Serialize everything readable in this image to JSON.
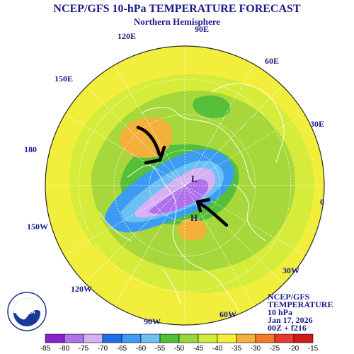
{
  "header": {
    "title": "NCEP/GFS 10-hPa TEMPERATURE FORECAST",
    "subtitle": "Northern Hemisphere"
  },
  "longitude_labels": {
    "lon_90e": "90E",
    "lon_120e": "120E",
    "lon_60e": "60E",
    "lon_150e": "150E",
    "lon_30e": "30E",
    "lon_180": "180",
    "lon_0": "0",
    "lon_150w": "150W",
    "lon_30w": "30W",
    "lon_120w": "120W",
    "lon_60w": "60W",
    "lon_90w": "90W"
  },
  "markers": {
    "low": "L",
    "high": "H"
  },
  "info": {
    "line1": "NCEP/GFS",
    "line2": "TEMPERATURE",
    "line3": "10 hPa",
    "line4": "Jan 17, 2026",
    "line5": "00Z + f216"
  },
  "colorbar": {
    "ticks": [
      "-85",
      "-80",
      "-75",
      "-70",
      "-65",
      "-60",
      "-55",
      "-50",
      "-45",
      "-40",
      "-35",
      "-30",
      "-25",
      "-20",
      "-15"
    ],
    "colors": [
      "#8a1fd0",
      "#b070ec",
      "#d6b0f4",
      "#1e6ff0",
      "#3c9cf4",
      "#6ec0f4",
      "#4fbf3a",
      "#9ad63a",
      "#d0ec3a",
      "#f4f03a",
      "#f4b03a",
      "#f47a2a",
      "#e83a2a",
      "#d01a1a"
    ]
  },
  "logo": {
    "text": "NOAA"
  }
}
